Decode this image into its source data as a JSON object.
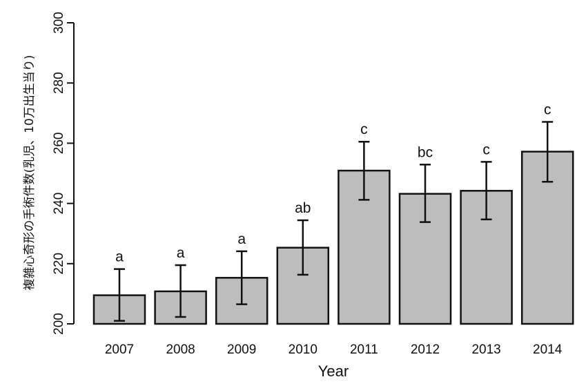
{
  "chart_data": {
    "type": "bar",
    "title": "",
    "xlabel": "Year",
    "ylabel": "複雑心奇形の手術件数(乳児、10万出生当り)",
    "categories": [
      "2007",
      "2008",
      "2009",
      "2010",
      "2011",
      "2012",
      "2013",
      "2014"
    ],
    "values": [
      209.5,
      210.8,
      215.3,
      225.3,
      250.9,
      243.2,
      244.2,
      257.2
    ],
    "error_low": [
      201.0,
      202.3,
      206.5,
      216.3,
      241.2,
      233.8,
      234.7,
      247.2
    ],
    "error_high": [
      218.2,
      219.5,
      224.1,
      234.4,
      260.5,
      252.9,
      253.8,
      267.1
    ],
    "group_labels": [
      "a",
      "a",
      "a",
      "ab",
      "c",
      "bc",
      "c",
      "c"
    ],
    "ylim": [
      200,
      300
    ],
    "yticks": [
      200,
      220,
      240,
      260,
      280,
      300
    ],
    "bar_color": "#bdbdbd",
    "edge_color": "#111111",
    "grid": false
  }
}
